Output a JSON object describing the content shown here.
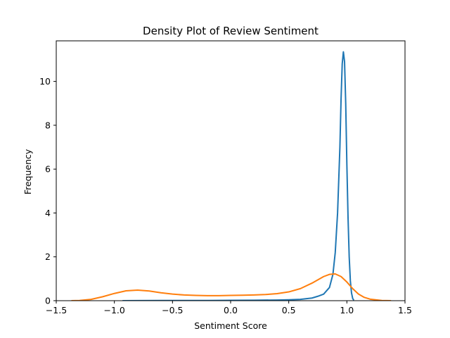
{
  "chart_data": {
    "type": "line",
    "title": "Density Plot of Review Sentiment",
    "xlabel": "Sentiment Score",
    "ylabel": "Frequency",
    "xlim": [
      -1.5,
      1.5
    ],
    "ylim": [
      0,
      11.85
    ],
    "xticks": [
      -1.5,
      -1.0,
      -0.5,
      0.0,
      0.5,
      1.0,
      1.5
    ],
    "xtick_labels": [
      "−1.5",
      "−1.0",
      "−0.5",
      "0.0",
      "0.5",
      "1.0",
      "1.5"
    ],
    "yticks": [
      0,
      2,
      4,
      6,
      8,
      10
    ],
    "ytick_labels": [
      "0",
      "2",
      "4",
      "6",
      "8",
      "10"
    ],
    "grid": false,
    "legend": "none",
    "series": [
      {
        "color": "#1f77b4",
        "x": [
          -0.93,
          -0.8,
          -0.6,
          -0.4,
          -0.2,
          0.0,
          0.2,
          0.4,
          0.5,
          0.6,
          0.7,
          0.75,
          0.8,
          0.85,
          0.88,
          0.9,
          0.92,
          0.94,
          0.95,
          0.96,
          0.97,
          0.98,
          0.99,
          1.0,
          1.01,
          1.02,
          1.03,
          1.04,
          1.05,
          1.06
        ],
        "y": [
          0.0,
          0.005,
          0.01,
          0.01,
          0.01,
          0.015,
          0.02,
          0.03,
          0.04,
          0.06,
          0.12,
          0.2,
          0.3,
          0.6,
          1.2,
          2.2,
          4.0,
          7.0,
          9.2,
          10.8,
          11.35,
          10.9,
          9.0,
          6.2,
          3.8,
          2.0,
          0.9,
          0.35,
          0.1,
          0.02
        ]
      },
      {
        "color": "#ff7f0e",
        "x": [
          -1.37,
          -1.3,
          -1.2,
          -1.1,
          -1.0,
          -0.9,
          -0.8,
          -0.7,
          -0.6,
          -0.5,
          -0.4,
          -0.3,
          -0.2,
          -0.1,
          0.0,
          0.1,
          0.2,
          0.3,
          0.4,
          0.5,
          0.6,
          0.7,
          0.8,
          0.85,
          0.9,
          0.95,
          1.0,
          1.05,
          1.1,
          1.15,
          1.2,
          1.3,
          1.38
        ],
        "y": [
          0.0,
          0.01,
          0.06,
          0.18,
          0.33,
          0.45,
          0.48,
          0.44,
          0.36,
          0.3,
          0.26,
          0.24,
          0.23,
          0.23,
          0.24,
          0.25,
          0.26,
          0.28,
          0.32,
          0.4,
          0.55,
          0.8,
          1.1,
          1.2,
          1.22,
          1.1,
          0.85,
          0.55,
          0.3,
          0.15,
          0.07,
          0.01,
          0.0
        ]
      }
    ]
  }
}
